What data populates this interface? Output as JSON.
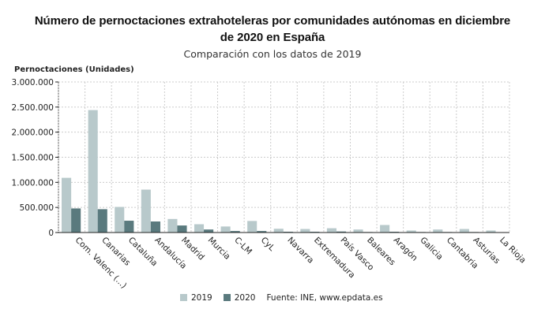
{
  "chart_data": {
    "type": "bar",
    "title": "Número de pernoctaciones extrahoteleras por comunidades autónomas en diciembre de 2020 en España",
    "title_line1": "Número de pernoctaciones extrahoteleras por comunidades autónomas en diciembre",
    "title_line2": "de 2020 en España",
    "subtitle": "Comparación con los datos de 2019",
    "ylabel": "Pernoctaciones (Unidades)",
    "ylim": [
      0,
      3000000
    ],
    "yticks": [
      "0",
      "500.000",
      "1.000.000",
      "1.500.000",
      "2.000.000",
      "2.500.000",
      "3.000.000"
    ],
    "grid": true,
    "legend_placement": "bottom",
    "categories": [
      "Com. Valenc (...)",
      "Canarias",
      "Cataluña",
      "Andalucía",
      "Madrid",
      "Murcia",
      "C-LM",
      "CyL",
      "Navarra",
      "Extremadura",
      "País Vasco",
      "Baleares",
      "Aragón",
      "Galicia",
      "Cantabria",
      "Asturias",
      "La Rioja"
    ],
    "series": [
      {
        "name": "2019",
        "color": "#b8c9cb",
        "values": [
          1090000,
          2440000,
          510000,
          855000,
          270000,
          165000,
          120000,
          230000,
          75000,
          70000,
          85000,
          60000,
          150000,
          40000,
          60000,
          70000,
          40000
        ]
      },
      {
        "name": "2020",
        "color": "#5a7a7e",
        "values": [
          480000,
          465000,
          235000,
          220000,
          140000,
          60000,
          30000,
          30000,
          15000,
          15000,
          20000,
          10000,
          15000,
          10000,
          10000,
          10000,
          5000
        ]
      }
    ],
    "source": "Fuente: INE, www.epdata.es"
  }
}
